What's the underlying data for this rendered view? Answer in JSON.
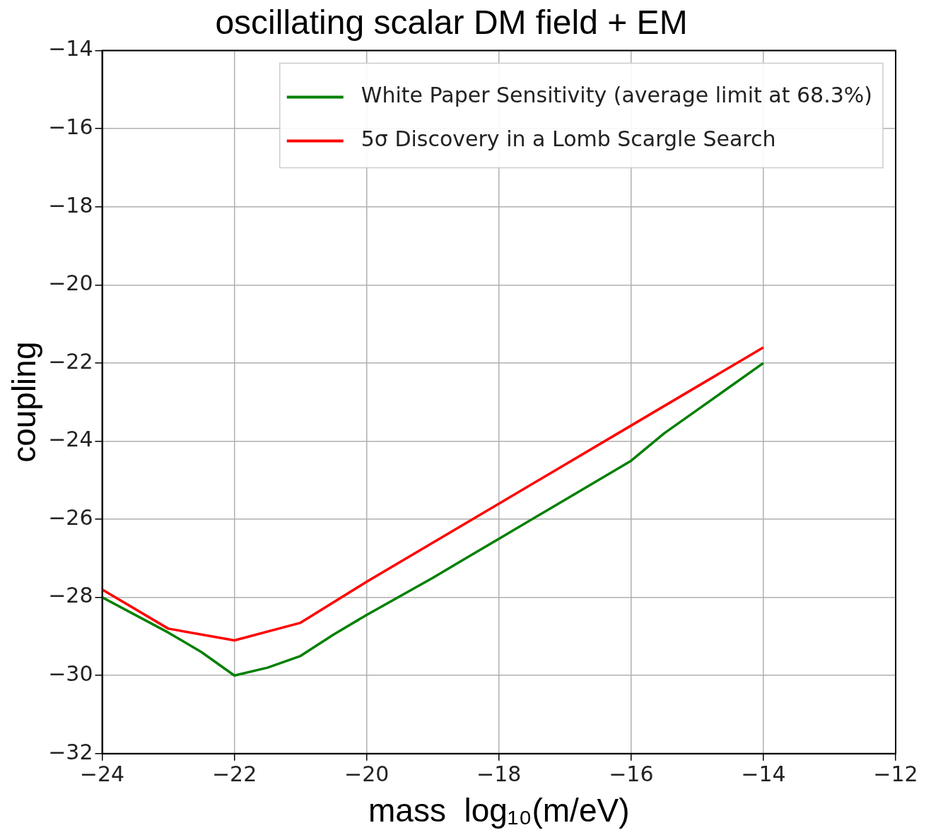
{
  "chart_data": {
    "type": "line",
    "title": "oscillating scalar DM field + EM",
    "xlabel": "mass  log₁₀(m/eV)",
    "ylabel": "coupling",
    "xlim": [
      -24,
      -12
    ],
    "xticks": [
      -24,
      -22,
      -20,
      -18,
      -16,
      -14,
      -12
    ],
    "ylim": [
      -32,
      -14
    ],
    "yticks": [
      -32,
      -30,
      -28,
      -26,
      -24,
      -22,
      -20,
      -18,
      -16,
      -14
    ],
    "grid": true,
    "legend": "top right",
    "marker": "none",
    "line_style": "solid",
    "series": [
      {
        "name": "White Paper Sensitivity (average limit at 68.3%)",
        "color": "#008000",
        "x": [
          -24,
          -23,
          -22.5,
          -22,
          -21.5,
          -21,
          -20.5,
          -20,
          -19,
          -18.5,
          -18,
          -17,
          -16,
          -15.5,
          -14
        ],
        "values": [
          -28.0,
          -28.9,
          -29.4,
          -30.0,
          -29.8,
          -29.5,
          -28.95,
          -28.45,
          -27.5,
          -27.0,
          -26.5,
          -25.5,
          -24.5,
          -23.8,
          -22.0
        ]
      },
      {
        "name": "5σ Discovery in a Lomb Scargle Search",
        "color": "#ff0000",
        "x": [
          -24,
          -23,
          -22,
          -21,
          -20,
          -18,
          -16,
          -14
        ],
        "values": [
          -27.8,
          -28.8,
          -29.1,
          -28.65,
          -27.6,
          -25.6,
          -23.6,
          -21.6
        ]
      }
    ]
  }
}
